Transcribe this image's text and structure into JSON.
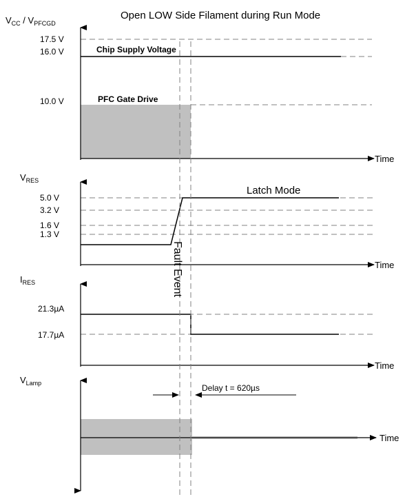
{
  "title": "Open LOW Side Filament during Run Mode",
  "time_label": "Time",
  "panel1": {
    "ylabel_v": "V",
    "ylabel_v_sub": "CC",
    "ylabel_sep": " / V",
    "ylabel_sub2": "PFCGD",
    "ticks": [
      "17.5 V",
      "16.0 V",
      "10.0 V"
    ],
    "chip_supply_label": "Chip Supply  Voltage",
    "pfc_gate_label": "PFC Gate Drive"
  },
  "panel2": {
    "ylabel_v": "V",
    "ylabel_sub": "RES",
    "ticks": [
      "5.0 V",
      "3.2 V",
      "1.6 V",
      "1.3 V"
    ],
    "latch_label": "Latch Mode",
    "fault_label": "Fault Event"
  },
  "panel3": {
    "ylabel_v": "I",
    "ylabel_sub": "RES",
    "ticks": [
      "21.3µA",
      "17.7µA"
    ]
  },
  "panel4": {
    "ylabel_v": "V",
    "ylabel_sub": "Lamp",
    "delay_label": "Delay t = 620µs"
  },
  "colors": {
    "gray_fill": "#c0c0c0",
    "dash": "#808080",
    "line": "#000000"
  }
}
